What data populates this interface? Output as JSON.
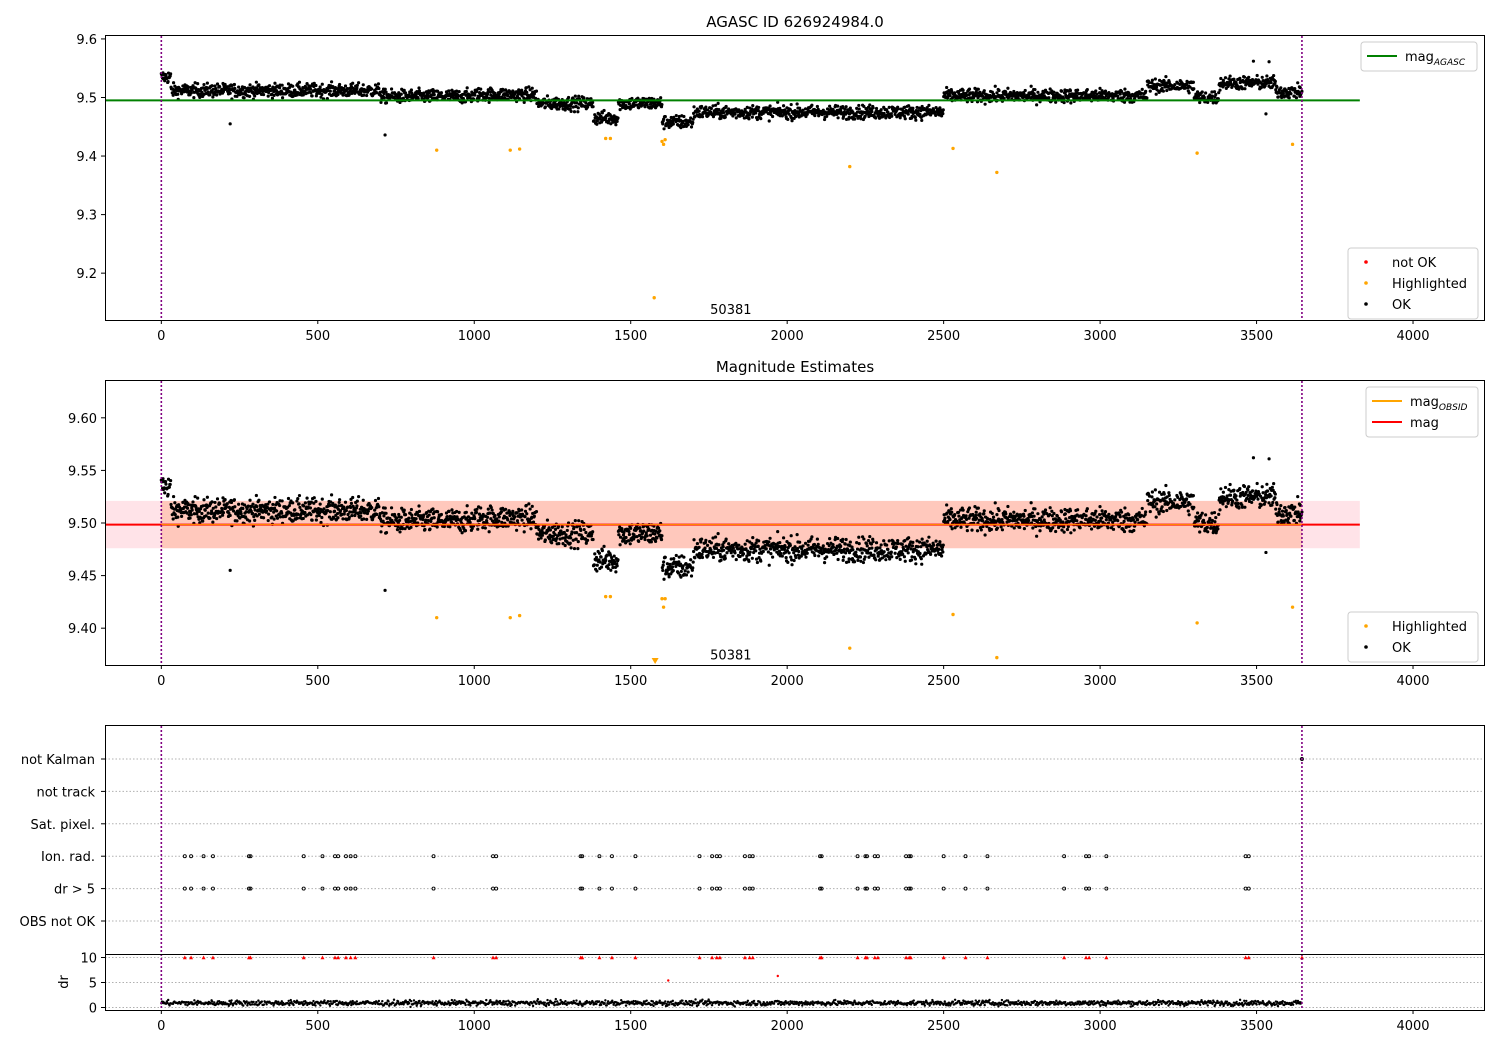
{
  "colors": {
    "ok": "#000000",
    "highlighted": "#ffa500",
    "not_ok": "#ff0000",
    "mag_agasc": "#008000",
    "mag": "#ff0000",
    "mag_obsid": "#ffa500",
    "band_pink": "#ffc0cb",
    "band_orange": "#ffa07a",
    "vline": "#800080"
  },
  "chart_data": [
    {
      "type": "scatter",
      "title": "AGASC ID 626924984.0",
      "xlim": [
        -180,
        4230
      ],
      "ylim": [
        9.12,
        9.605
      ],
      "xticks": [
        0,
        500,
        1000,
        1500,
        2000,
        2500,
        3000,
        3500,
        4000
      ],
      "xtick_labels": [
        "0",
        "500",
        "1000",
        "1500",
        "2000",
        "2500",
        "3000",
        "3500",
        "4000"
      ],
      "yticks": [
        9.2,
        9.3,
        9.4,
        9.5,
        9.6
      ],
      "ytick_labels": [
        "9.2",
        "9.3",
        "9.4",
        "9.5",
        "9.6"
      ],
      "annotation": {
        "text": "50381",
        "x": 1820,
        "y": 9.13
      },
      "vlines": [
        0,
        3645
      ],
      "hline": {
        "y": 9.495,
        "x0": -180,
        "x1": 3830,
        "name": "mag_AGASC"
      },
      "legend_top": {
        "placement": "top-right",
        "entries": [
          {
            "label": "mag",
            "sub": "AGASC",
            "kind": "line",
            "color": "#008000"
          }
        ]
      },
      "legend_bottom": {
        "placement": "lower-right",
        "entries": [
          {
            "label": "not OK",
            "kind": "dot",
            "color": "#ff0000"
          },
          {
            "label": "Highlighted",
            "kind": "dot",
            "color": "#ffa500"
          },
          {
            "label": "OK",
            "kind": "dot",
            "color": "#000000"
          }
        ]
      },
      "highlighted_points": [
        [
          880,
          9.41
        ],
        [
          1115,
          9.41
        ],
        [
          1145,
          9.412
        ],
        [
          1420,
          9.43
        ],
        [
          1435,
          9.43
        ],
        [
          1575,
          9.158
        ],
        [
          1600,
          9.425
        ],
        [
          1605,
          9.42
        ],
        [
          1610,
          9.428
        ],
        [
          2200,
          9.382
        ],
        [
          2530,
          9.413
        ],
        [
          2670,
          9.372
        ],
        [
          3310,
          9.405
        ],
        [
          3615,
          9.42
        ]
      ]
    },
    {
      "type": "scatter",
      "title": "Magnitude Estimates",
      "xlim": [
        -180,
        4230
      ],
      "ylim": [
        9.365,
        9.635
      ],
      "xticks": [
        0,
        500,
        1000,
        1500,
        2000,
        2500,
        3000,
        3500,
        4000
      ],
      "xtick_labels": [
        "0",
        "500",
        "1000",
        "1500",
        "2000",
        "2500",
        "3000",
        "3500",
        "4000"
      ],
      "yticks": [
        9.4,
        9.45,
        9.5,
        9.55,
        9.6
      ],
      "ytick_labels": [
        "9.40",
        "9.45",
        "9.50",
        "9.55",
        "9.60"
      ],
      "annotation": {
        "text": "50381",
        "x": 1820,
        "y": 9.37
      },
      "vlines": [
        0,
        3645
      ],
      "bands": [
        {
          "y0": 9.476,
          "y1": 9.521,
          "x0": -180,
          "x1": 3830,
          "color": "#ffc0cb",
          "opacity": 0.45
        },
        {
          "y0": 9.476,
          "y1": 9.521,
          "x0": 0,
          "x1": 3645,
          "color": "#ffa07a",
          "opacity": 0.4
        }
      ],
      "hline_mag": {
        "y": 9.4985,
        "x0": -180,
        "x1": 3830,
        "name": "mag"
      },
      "hline_obsid": {
        "y": 9.4985,
        "x0": 0,
        "x1": 3645,
        "name": "mag_OBSID"
      },
      "legend_top": {
        "placement": "top-right",
        "entries": [
          {
            "label": "mag",
            "sub": "OBSID",
            "kind": "line",
            "color": "#ffa500"
          },
          {
            "label": "mag",
            "sub": "",
            "kind": "line",
            "color": "#ff0000"
          }
        ]
      },
      "legend_bottom": {
        "placement": "lower-right",
        "entries": [
          {
            "label": "Highlighted",
            "kind": "dot",
            "color": "#ffa500"
          },
          {
            "label": "OK",
            "kind": "dot",
            "color": "#000000"
          }
        ]
      },
      "highlighted_points": [
        [
          880,
          9.41
        ],
        [
          1115,
          9.41
        ],
        [
          1145,
          9.412
        ],
        [
          1420,
          9.43
        ],
        [
          1435,
          9.43
        ],
        [
          1600,
          9.428
        ],
        [
          1605,
          9.42
        ],
        [
          1610,
          9.428
        ],
        [
          2200,
          9.381
        ],
        [
          2530,
          9.413
        ],
        [
          2670,
          9.372
        ],
        [
          3310,
          9.405
        ],
        [
          3615,
          9.42
        ]
      ],
      "clipped_marker": {
        "x": 1578,
        "color": "#ffa500"
      }
    },
    {
      "type": "scatter",
      "title": "",
      "xlim": [
        -180,
        4230
      ],
      "flag_labels": [
        "not Kalman",
        "not track",
        "Sat. pixel.",
        "Ion. rad.",
        "dr > 5",
        "OBS not OK"
      ],
      "flag_points": {
        "Ion. rad.": [
          75,
          95,
          135,
          165,
          280,
          285,
          455,
          515,
          555,
          565,
          590,
          605,
          620,
          870,
          1060,
          1070,
          1340,
          1345,
          1400,
          1440,
          1515,
          1720,
          1760,
          1775,
          1785,
          1865,
          1880,
          1890,
          2105,
          2110,
          2225,
          2250,
          2255,
          2280,
          2290,
          2380,
          2390,
          2395,
          2500,
          2570,
          2640,
          2885,
          2955,
          2965,
          3020,
          3465,
          3475
        ],
        "dr > 5": [
          75,
          95,
          135,
          165,
          280,
          285,
          455,
          515,
          555,
          565,
          590,
          605,
          620,
          870,
          1060,
          1070,
          1340,
          1345,
          1400,
          1440,
          1515,
          1720,
          1760,
          1775,
          1785,
          1865,
          1880,
          1890,
          2105,
          2110,
          2225,
          2250,
          2255,
          2280,
          2290,
          2380,
          2390,
          2395,
          2500,
          2570,
          2640,
          2885,
          2955,
          2965,
          3020,
          3465,
          3475
        ],
        "not Kalman": [
          3645
        ]
      },
      "dr_ylabel": "dr",
      "dr_ylim": [
        -0.5,
        10.5
      ],
      "dr_yticks": [
        0,
        5,
        10
      ],
      "dr_ytick_labels": [
        "0",
        "5",
        "10"
      ],
      "dr_clipped_x": [
        75,
        95,
        135,
        165,
        280,
        285,
        455,
        515,
        555,
        565,
        590,
        605,
        620,
        870,
        1060,
        1070,
        1340,
        1345,
        1400,
        1440,
        1515,
        1720,
        1760,
        1775,
        1785,
        1865,
        1880,
        1890,
        2105,
        2110,
        2225,
        2250,
        2255,
        2280,
        2290,
        2380,
        2390,
        2395,
        2500,
        2570,
        2640,
        2885,
        2955,
        2965,
        3020,
        3465,
        3475,
        3645
      ],
      "dr_red_points": [
        [
          1620,
          5.4
        ],
        [
          1970,
          6.3
        ]
      ],
      "xticks": [
        0,
        500,
        1000,
        1500,
        2000,
        2500,
        3000,
        3500,
        4000
      ],
      "xtick_labels": [
        "0",
        "500",
        "1000",
        "1500",
        "2000",
        "2500",
        "3000",
        "3500",
        "4000"
      ],
      "vlines": [
        0,
        3645
      ]
    }
  ]
}
